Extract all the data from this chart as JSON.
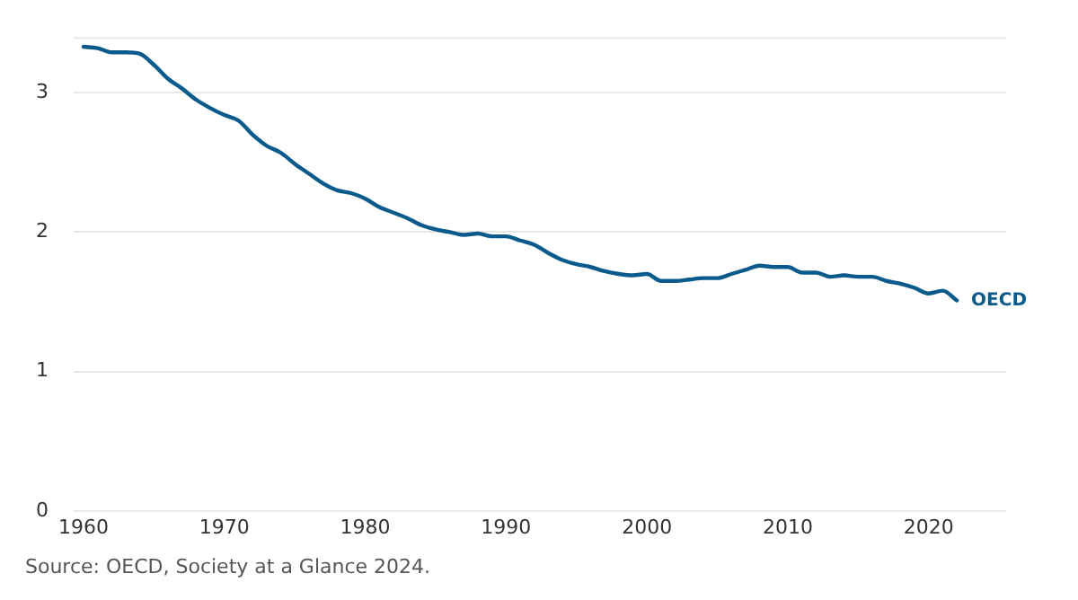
{
  "chart_data": {
    "type": "line",
    "x": [
      1960,
      1961,
      1962,
      1963,
      1964,
      1965,
      1966,
      1967,
      1968,
      1969,
      1970,
      1971,
      1972,
      1973,
      1974,
      1975,
      1976,
      1977,
      1978,
      1979,
      1980,
      1981,
      1982,
      1983,
      1984,
      1985,
      1986,
      1987,
      1988,
      1989,
      1990,
      1991,
      1992,
      1993,
      1994,
      1995,
      1996,
      1997,
      1998,
      1999,
      2000,
      2001,
      2002,
      2003,
      2004,
      2005,
      2006,
      2007,
      2008,
      2009,
      2010,
      2011,
      2012,
      2013,
      2014,
      2015,
      2016,
      2017,
      2018,
      2019,
      2020,
      2021,
      2022
    ],
    "series": [
      {
        "name": "OECD",
        "color": "#0b5a8c",
        "values": [
          3.33,
          3.32,
          3.29,
          3.29,
          3.28,
          3.2,
          3.1,
          3.03,
          2.95,
          2.89,
          2.84,
          2.8,
          2.7,
          2.62,
          2.57,
          2.49,
          2.42,
          2.35,
          2.3,
          2.28,
          2.24,
          2.18,
          2.14,
          2.1,
          2.05,
          2.02,
          2.0,
          1.98,
          1.99,
          1.97,
          1.97,
          1.94,
          1.91,
          1.85,
          1.8,
          1.77,
          1.75,
          1.72,
          1.7,
          1.69,
          1.7,
          1.65,
          1.65,
          1.66,
          1.67,
          1.67,
          1.7,
          1.73,
          1.76,
          1.75,
          1.75,
          1.71,
          1.71,
          1.68,
          1.69,
          1.68,
          1.68,
          1.65,
          1.63,
          1.6,
          1.56,
          1.58,
          1.51
        ]
      }
    ],
    "xlim": [
      1959.3,
      2025.5
    ],
    "xticks": [
      1960,
      1970,
      1980,
      1990,
      2000,
      2010,
      2020
    ],
    "ylim": [
      0,
      3.4
    ],
    "yticks": [
      0,
      1,
      2,
      3
    ],
    "grid": "y",
    "legend": false,
    "marker": "none",
    "line_style": "solid",
    "annotations": [
      "Source: OECD, Society at a Glance 2024."
    ]
  }
}
